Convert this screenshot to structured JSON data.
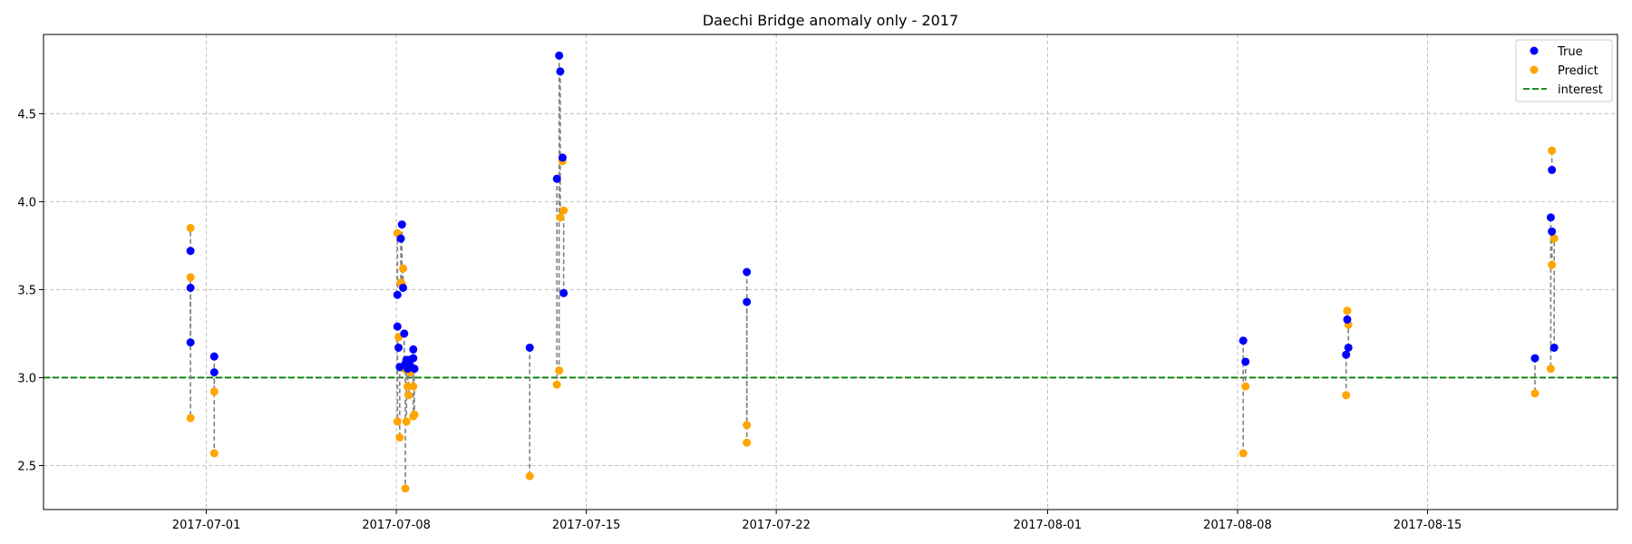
{
  "chart_data": {
    "type": "scatter",
    "title": "Daechi Bridge anomaly only - 2017",
    "xlabel": "",
    "ylabel": "",
    "x_is_date": true,
    "xlim": [
      "2017-06-25",
      "2017-08-22"
    ],
    "ylim": [
      2.25,
      4.95
    ],
    "x_ticks": [
      {
        "value": "2017-07-01",
        "label": "2017-07-01"
      },
      {
        "value": "2017-07-08",
        "label": "2017-07-08"
      },
      {
        "value": "2017-07-15",
        "label": "2017-07-15"
      },
      {
        "value": "2017-07-22",
        "label": "2017-07-22"
      },
      {
        "value": "2017-08-01",
        "label": "2017-08-01"
      },
      {
        "value": "2017-08-08",
        "label": "2017-08-08"
      },
      {
        "value": "2017-08-15",
        "label": "2017-08-15"
      }
    ],
    "y_ticks": [
      {
        "value": 2.5,
        "label": "2.5"
      },
      {
        "value": 3.0,
        "label": "3.0"
      },
      {
        "value": 3.5,
        "label": "3.5"
      },
      {
        "value": 4.0,
        "label": "4.0"
      },
      {
        "value": 4.5,
        "label": "4.5"
      }
    ],
    "grid": true,
    "legend_position": "top-right",
    "legend": [
      {
        "label": "True",
        "marker": "dot",
        "color": "#0000ff"
      },
      {
        "label": "Predict",
        "marker": "dot",
        "color": "#ffa500"
      },
      {
        "label": "interest",
        "marker": "dashed-line",
        "color": "#008000"
      }
    ],
    "threshold": {
      "name": "interest",
      "y": 3.0,
      "color": "#008000"
    },
    "colors": {
      "true": "#0000ff",
      "predict": "#ffa500",
      "connector": "#808080"
    },
    "points": [
      {
        "t": "2017-06-30T10:00",
        "true": 3.72,
        "pred": 3.85
      },
      {
        "t": "2017-06-30T10:00",
        "true": 3.51,
        "pred": 2.77
      },
      {
        "t": "2017-06-30T10:00",
        "true": 3.2,
        "pred": 3.57
      },
      {
        "t": "2017-07-01T07:00",
        "true": 3.12,
        "pred": 2.57
      },
      {
        "t": "2017-07-01T07:00",
        "true": 3.03,
        "pred": 2.92
      },
      {
        "t": "2017-07-08T01:00",
        "true": 3.47,
        "pred": 3.82
      },
      {
        "t": "2017-07-08T01:00",
        "true": 3.29,
        "pred": 2.75
      },
      {
        "t": "2017-07-08T02:00",
        "true": 3.17,
        "pred": 3.23
      },
      {
        "t": "2017-07-08T03:00",
        "true": 3.06,
        "pred": 2.66
      },
      {
        "t": "2017-07-08T04:00",
        "true": 3.79,
        "pred": 3.54
      },
      {
        "t": "2017-07-08T05:00",
        "true": 3.87,
        "pred": 3.53
      },
      {
        "t": "2017-07-08T06:00",
        "true": 3.51,
        "pred": 3.62
      },
      {
        "t": "2017-07-08T07:00",
        "true": 3.25,
        "pred": 3.05
      },
      {
        "t": "2017-07-08T08:00",
        "true": 3.08,
        "pred": 2.37
      },
      {
        "t": "2017-07-08T09:00",
        "true": 3.1,
        "pred": 2.75
      },
      {
        "t": "2017-07-08T10:00",
        "true": 3.05,
        "pred": 2.95
      },
      {
        "t": "2017-07-08T11:00",
        "true": 3.1,
        "pred": 2.9
      },
      {
        "t": "2017-07-08T12:00",
        "true": 3.07,
        "pred": 3.03
      },
      {
        "t": "2017-07-08T15:00",
        "true": 3.16,
        "pred": 2.78
      },
      {
        "t": "2017-07-08T15:00",
        "true": 3.11,
        "pred": 2.95
      },
      {
        "t": "2017-07-08T16:00",
        "true": 3.05,
        "pred": 2.79
      },
      {
        "t": "2017-07-12T22:00",
        "true": 3.17,
        "pred": 2.44
      },
      {
        "t": "2017-07-13T22:00",
        "true": 4.13,
        "pred": 2.96
      },
      {
        "t": "2017-07-14T00:00",
        "true": 4.83,
        "pred": 3.04
      },
      {
        "t": "2017-07-14T01:00",
        "true": 4.74,
        "pred": 3.91
      },
      {
        "t": "2017-07-14T03:00",
        "true": 4.25,
        "pred": 4.23
      },
      {
        "t": "2017-07-14T04:00",
        "true": 3.48,
        "pred": 3.95
      },
      {
        "t": "2017-07-20T22:00",
        "true": 3.6,
        "pred": 2.73
      },
      {
        "t": "2017-07-20T22:00",
        "true": 3.43,
        "pred": 2.63
      },
      {
        "t": "2017-08-08T05:00",
        "true": 3.21,
        "pred": 2.57
      },
      {
        "t": "2017-08-08T07:00",
        "true": 3.09,
        "pred": 2.95
      },
      {
        "t": "2017-08-12T00:00",
        "true": 3.13,
        "pred": 2.9
      },
      {
        "t": "2017-08-12T01:00",
        "true": 3.33,
        "pred": 3.38
      },
      {
        "t": "2017-08-12T02:00",
        "true": 3.17,
        "pred": 3.3
      },
      {
        "t": "2017-08-18T23:00",
        "true": 3.11,
        "pred": 2.91
      },
      {
        "t": "2017-08-19T13:00",
        "true": 3.91,
        "pred": 3.05
      },
      {
        "t": "2017-08-19T14:00",
        "true": 4.18,
        "pred": 4.29
      },
      {
        "t": "2017-08-19T14:00",
        "true": 3.83,
        "pred": 3.64
      },
      {
        "t": "2017-08-19T16:00",
        "true": 3.17,
        "pred": 3.79
      }
    ]
  }
}
